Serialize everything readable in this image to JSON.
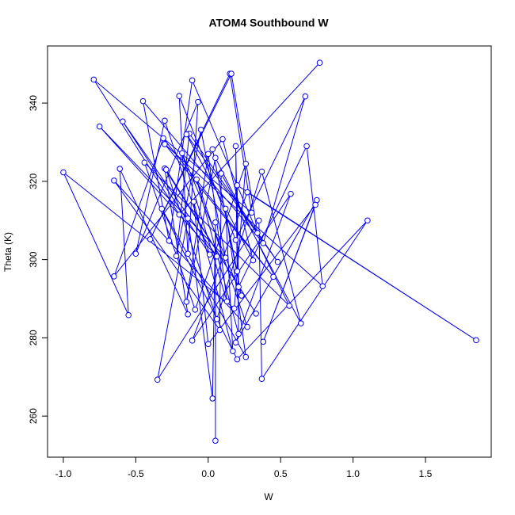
{
  "chart_data": {
    "type": "line",
    "markers": true,
    "title": "ATOM4 Southbound W",
    "x_label": "W",
    "y_label": "Theta (K)",
    "color": "#0000ff",
    "x": [
      0.77,
      -0.2,
      -0.79,
      0.3,
      0.15,
      -0.4,
      0.16,
      0.34,
      -0.11,
      -0.27,
      -0.45,
      0.38,
      0.67,
      0.19,
      -0.2,
      -0.14,
      -0.07,
      -0.5,
      -0.3,
      0.01,
      -0.59,
      0.06,
      -0.75,
      0.12,
      -0.05,
      -0.22,
      -0.13,
      0.48,
      -0.15,
      0.31,
      0.1,
      -0.65,
      -0.31,
      0.45,
      -0.3,
      0.79,
      0.68,
      0.21,
      0.19,
      0.2,
      0.03,
      0.23,
      -0.18,
      0.13,
      0.0,
      -0.15,
      0.05,
      0.56,
      -0.44,
      -0.09,
      0.26,
      0.18,
      -1.0,
      -0.55,
      -0.61,
      -0.14,
      -0.3,
      0.33,
      -0.29,
      0.06,
      0.37,
      0.64,
      0.09,
      0.08,
      -0.65,
      0.27,
      -0.08,
      0.21,
      0.2,
      1.85,
      0.27,
      -0.11,
      0.57,
      0.19,
      0.75,
      0.38,
      0.74,
      0.0,
      -0.1,
      0.17,
      0.12,
      0.26,
      -0.32,
      0.2,
      1.1,
      0.37,
      0.35,
      -0.35,
      -0.14,
      0.03,
      0.05,
      0.05
    ],
    "values": [
      350.3,
      311.5,
      346,
      312,
      347.5,
      305.2,
      347.5,
      306.8,
      345.8,
      304.8,
      340.5,
      304.2,
      341.7,
      305,
      341.8,
      301.5,
      340.3,
      301.5,
      335.5,
      301.3,
      335.3,
      300.8,
      334,
      300.5,
      333.2,
      300.9,
      332.2,
      299.4,
      332,
      299.8,
      330.8,
      295.7,
      331,
      295.6,
      329.5,
      293.2,
      329,
      293,
      329,
      297,
      328.2,
      290.8,
      327.2,
      289.3,
      327,
      289.2,
      326,
      288.2,
      324.8,
      287.2,
      324.5,
      287.5,
      322.3,
      285.8,
      323.2,
      286,
      323.3,
      286.2,
      323,
      284.8,
      322.5,
      283.7,
      322,
      282,
      320.2,
      282.8,
      320.5,
      281,
      319,
      279.4,
      317.2,
      279.3,
      316.8,
      278.8,
      315.2,
      279,
      314,
      278.4,
      314.8,
      276.6,
      313,
      275.1,
      313,
      274.5,
      310,
      269.5,
      310,
      269.3,
      310.5,
      264.5,
      309.5,
      253.7
    ],
    "xlim": [
      -1.109,
      1.954
    ],
    "ylim": [
      249.5,
      354.6
    ],
    "xticks": [
      {
        "value": -1.0,
        "label": "-1.0"
      },
      -0.5,
      {
        "value": 0.0,
        "label": "0.0"
      },
      0.5,
      {
        "value": 1.0,
        "label": "1.0"
      },
      1.5
    ],
    "yticks": [
      260,
      280,
      300,
      320,
      340
    ],
    "grid": false
  }
}
